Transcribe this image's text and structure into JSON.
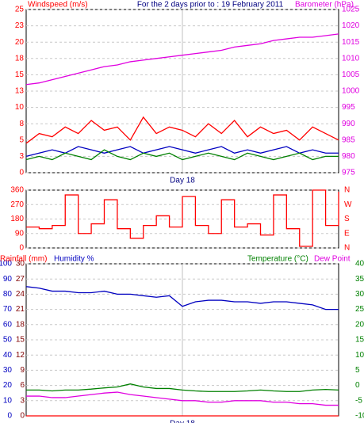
{
  "chart_data": [
    {
      "type": "line",
      "title": "For the 2 days prior to : 19 February 2011",
      "categories": [
        null,
        null,
        null,
        null,
        null,
        null,
        null,
        null,
        null,
        null,
        null,
        null,
        "Day 18",
        null,
        null,
        null,
        null,
        null,
        null,
        null,
        null,
        null,
        null,
        null,
        null
      ],
      "ylim": [
        0,
        25
      ],
      "yticks": [
        0,
        {
          "value": 2.5,
          "label": "3"
        },
        5,
        {
          "value": 7.5,
          "label": "8"
        },
        10,
        {
          "value": 12.5,
          "label": "13"
        },
        15,
        {
          "value": 17.5,
          "label": "18"
        },
        20,
        {
          "value": 22.5,
          "label": "23"
        },
        25
      ],
      "y2lim": [
        975,
        1025
      ],
      "y2ticks": [
        975,
        980,
        985,
        990,
        995,
        1000,
        1005,
        1010,
        1015,
        1020,
        1025
      ],
      "grid": true,
      "series": [
        {
          "name": "Windspeed (m/s)",
          "color": "#ff0000",
          "values": [
            4.5,
            6,
            5.5,
            7,
            6,
            8,
            6.5,
            7,
            5,
            8.5,
            6,
            7,
            6.5,
            5.5,
            7.5,
            6,
            8,
            5.5,
            7,
            6,
            6.5,
            5,
            7,
            6,
            5
          ]
        },
        {
          "color": "#0000c0",
          "values": [
            2.5,
            3,
            3.5,
            3,
            4,
            3.5,
            3,
            3.5,
            4,
            3,
            3.5,
            4,
            3.5,
            3,
            3.5,
            4,
            3,
            3.5,
            3,
            3.5,
            4,
            3,
            3.5,
            3,
            3
          ]
        },
        {
          "color": "#008000",
          "values": [
            2,
            2.5,
            2,
            3,
            2.5,
            2,
            3.5,
            2.5,
            2,
            3,
            2.5,
            3,
            2,
            2.5,
            3,
            2.5,
            2,
            3,
            2.5,
            2,
            2.5,
            3,
            2,
            2.5,
            2.5
          ]
        },
        {
          "name": "Barometer (hPa)",
          "color": "#e000e0",
          "axis": "y2",
          "values": [
            1002,
            1002.5,
            1003.5,
            1004.5,
            1005.5,
            1006.5,
            1007.5,
            1008,
            1009,
            1009.5,
            1010,
            1010.5,
            1011,
            1011.5,
            1012,
            1012.5,
            1013.5,
            1014,
            1014.5,
            1015.5,
            1016,
            1016.5,
            1016.5,
            1017,
            1017.5
          ]
        }
      ]
    },
    {
      "type": "step",
      "categories": [
        null,
        null,
        null,
        null,
        null,
        null,
        null,
        null,
        null,
        null,
        null,
        null,
        null,
        null,
        null,
        null,
        null,
        null,
        null,
        null,
        null,
        null,
        null,
        null,
        null
      ],
      "ylim": [
        0,
        360
      ],
      "yticks": [
        0,
        90,
        180,
        270,
        360
      ],
      "y2lim": [
        0,
        360
      ],
      "y2ticks": [
        {
          "value": 0,
          "label": "N"
        },
        {
          "value": 90,
          "label": "E"
        },
        {
          "value": 180,
          "label": "S"
        },
        {
          "value": 270,
          "label": "W"
        },
        {
          "value": 360,
          "label": "N"
        }
      ],
      "grid": true,
      "series": [
        {
          "color": "#ff0000",
          "values": [
            130,
            120,
            140,
            330,
            90,
            150,
            300,
            120,
            60,
            140,
            200,
            130,
            320,
            140,
            90,
            300,
            130,
            150,
            80,
            330,
            120,
            10,
            360,
            140,
            350
          ]
        }
      ]
    },
    {
      "type": "line",
      "categories": [
        null,
        null,
        null,
        null,
        null,
        null,
        null,
        null,
        null,
        null,
        null,
        null,
        "Day 18",
        null,
        null,
        null,
        null,
        null,
        null,
        null,
        null,
        null,
        null,
        null,
        null
      ],
      "ylim": [
        0,
        30
      ],
      "yticks": [
        0,
        3,
        6,
        9,
        12,
        15,
        18,
        21,
        24,
        27,
        30
      ],
      "y3lim": [
        0,
        100
      ],
      "y3ticks": [
        0,
        10,
        20,
        30,
        40,
        50,
        60,
        70,
        80,
        90,
        100
      ],
      "y2lim": [
        -10,
        40
      ],
      "y2ticks": [
        -10,
        -5,
        0,
        5,
        10,
        15,
        20,
        25,
        30,
        35,
        40
      ],
      "grid": true,
      "series": [
        {
          "name": "Rainfall (mm)",
          "color": "#ff0000",
          "values": [
            0,
            0,
            0,
            0,
            0,
            0,
            0,
            0,
            0,
            0,
            0,
            0,
            0,
            0,
            0,
            0,
            0,
            0,
            0,
            0,
            0,
            0,
            0,
            0,
            0
          ]
        },
        {
          "name": "Humidity %",
          "color": "#0000c0",
          "axis": "y3",
          "values": [
            85,
            84,
            82,
            82,
            81,
            81,
            82,
            80,
            80,
            79,
            78,
            79,
            72,
            75,
            76,
            76,
            75,
            75,
            74,
            75,
            75,
            74,
            73,
            70,
            70
          ]
        },
        {
          "name": "Temperature (°C)",
          "color": "#008000",
          "axis": "y2",
          "values": [
            -1.5,
            -1.5,
            -1.8,
            -1.5,
            -1.5,
            -1.2,
            -0.8,
            -0.5,
            0.5,
            -0.5,
            -1,
            -1,
            -1.5,
            -1.8,
            -2,
            -2,
            -2,
            -1.8,
            -1.5,
            -1.8,
            -2,
            -2,
            -1.5,
            -1.3,
            -1.5
          ]
        },
        {
          "name": "Dew Point",
          "color": "#e000e0",
          "axis": "y2",
          "values": [
            -3.5,
            -3.5,
            -4,
            -4,
            -3.5,
            -3,
            -2.5,
            -2.2,
            -3,
            -3.5,
            -4,
            -4.5,
            -5,
            -5,
            -5.5,
            -5.5,
            -5,
            -5,
            -5,
            -5.5,
            -5.5,
            -6,
            -6,
            -6.5,
            -6.5
          ]
        }
      ]
    }
  ]
}
